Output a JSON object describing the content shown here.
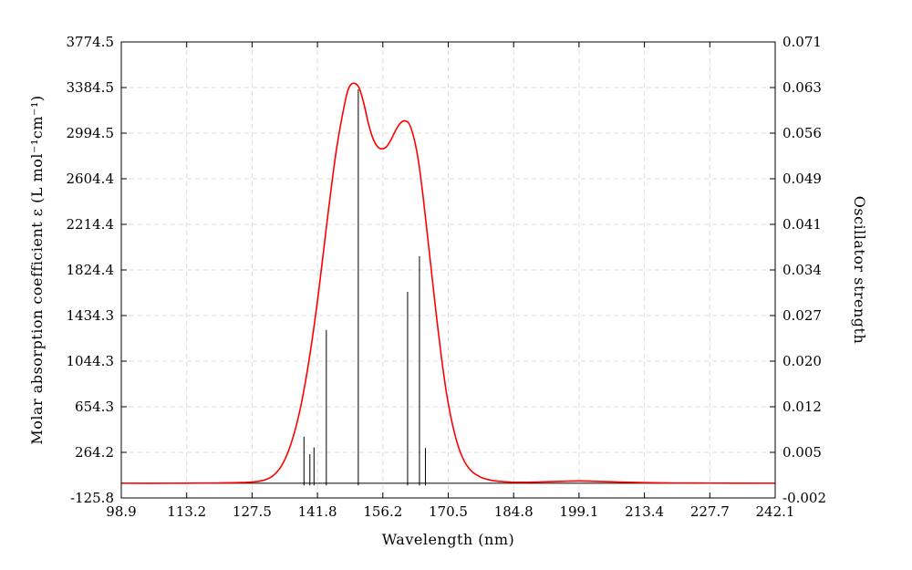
{
  "chart_data": {
    "type": "line",
    "xlabel": "Wavelength (nm)",
    "ylabel_left": "Molar absorption coefficient  ε (L mol⁻¹cm⁻¹)",
    "ylabel_right": "Oscillator strength",
    "xlim": [
      98.9,
      242.1
    ],
    "ylim_left": [
      -125.8,
      3774.5
    ],
    "ylim_right": [
      -0.002,
      0.071
    ],
    "x_ticks": [
      "98.9",
      "113.2",
      "127.5",
      "141.8",
      "156.2",
      "170.5",
      "184.8",
      "199.1",
      "213.4",
      "227.7",
      "242.1"
    ],
    "y_left_ticks": [
      "-125.8",
      "264.2",
      "654.3",
      "1044.3",
      "1434.3",
      "1824.4",
      "2214.4",
      "2604.4",
      "2994.5",
      "3384.5",
      "3774.5"
    ],
    "y_right_ticks": [
      "-0.002",
      "0.005",
      "0.012",
      "0.020",
      "0.027",
      "0.034",
      "0.041",
      "0.049",
      "0.056",
      "0.063",
      "0.071"
    ],
    "grid": true,
    "colors": {
      "spectrum": "#ff0000",
      "sticks": "#000000"
    },
    "series": [
      {
        "values": [
          [
            98.9,
            0
          ],
          [
            110,
            0
          ],
          [
            120,
            2
          ],
          [
            125,
            6
          ],
          [
            127.5,
            10
          ],
          [
            130,
            25
          ],
          [
            132,
            60
          ],
          [
            134,
            150
          ],
          [
            136,
            330
          ],
          [
            138,
            620
          ],
          [
            140,
            1050
          ],
          [
            142,
            1600
          ],
          [
            144,
            2250
          ],
          [
            146,
            2850
          ],
          [
            148,
            3280
          ],
          [
            149,
            3400
          ],
          [
            150,
            3420
          ],
          [
            151,
            3380
          ],
          [
            152,
            3250
          ],
          [
            153,
            3080
          ],
          [
            154,
            2950
          ],
          [
            155,
            2880
          ],
          [
            156,
            2860
          ],
          [
            157,
            2880
          ],
          [
            158,
            2940
          ],
          [
            159,
            3020
          ],
          [
            160,
            3080
          ],
          [
            161,
            3100
          ],
          [
            162,
            3070
          ],
          [
            163,
            2950
          ],
          [
            164,
            2750
          ],
          [
            165,
            2450
          ],
          [
            166,
            2100
          ],
          [
            167,
            1750
          ],
          [
            168,
            1400
          ],
          [
            169,
            1080
          ],
          [
            170,
            800
          ],
          [
            171,
            580
          ],
          [
            172,
            410
          ],
          [
            173,
            280
          ],
          [
            174,
            190
          ],
          [
            175,
            130
          ],
          [
            176,
            90
          ],
          [
            177,
            65
          ],
          [
            178,
            45
          ],
          [
            180,
            25
          ],
          [
            182,
            15
          ],
          [
            184,
            10
          ],
          [
            186,
            8
          ],
          [
            190,
            10
          ],
          [
            195,
            16
          ],
          [
            199.1,
            20
          ],
          [
            203,
            16
          ],
          [
            208,
            10
          ],
          [
            213.4,
            5
          ],
          [
            220,
            2
          ],
          [
            227.7,
            1
          ],
          [
            242.1,
            0
          ]
        ]
      }
    ],
    "sticks": [
      {
        "x": 138.9,
        "f": 0.0078
      },
      {
        "x": 140.2,
        "f": 0.005
      },
      {
        "x": 141.1,
        "f": 0.0061
      },
      {
        "x": 143.8,
        "f": 0.0249
      },
      {
        "x": 150.8,
        "f": 0.0634
      },
      {
        "x": 161.6,
        "f": 0.031
      },
      {
        "x": 164.2,
        "f": 0.0367
      },
      {
        "x": 165.5,
        "f": 0.006
      }
    ]
  }
}
